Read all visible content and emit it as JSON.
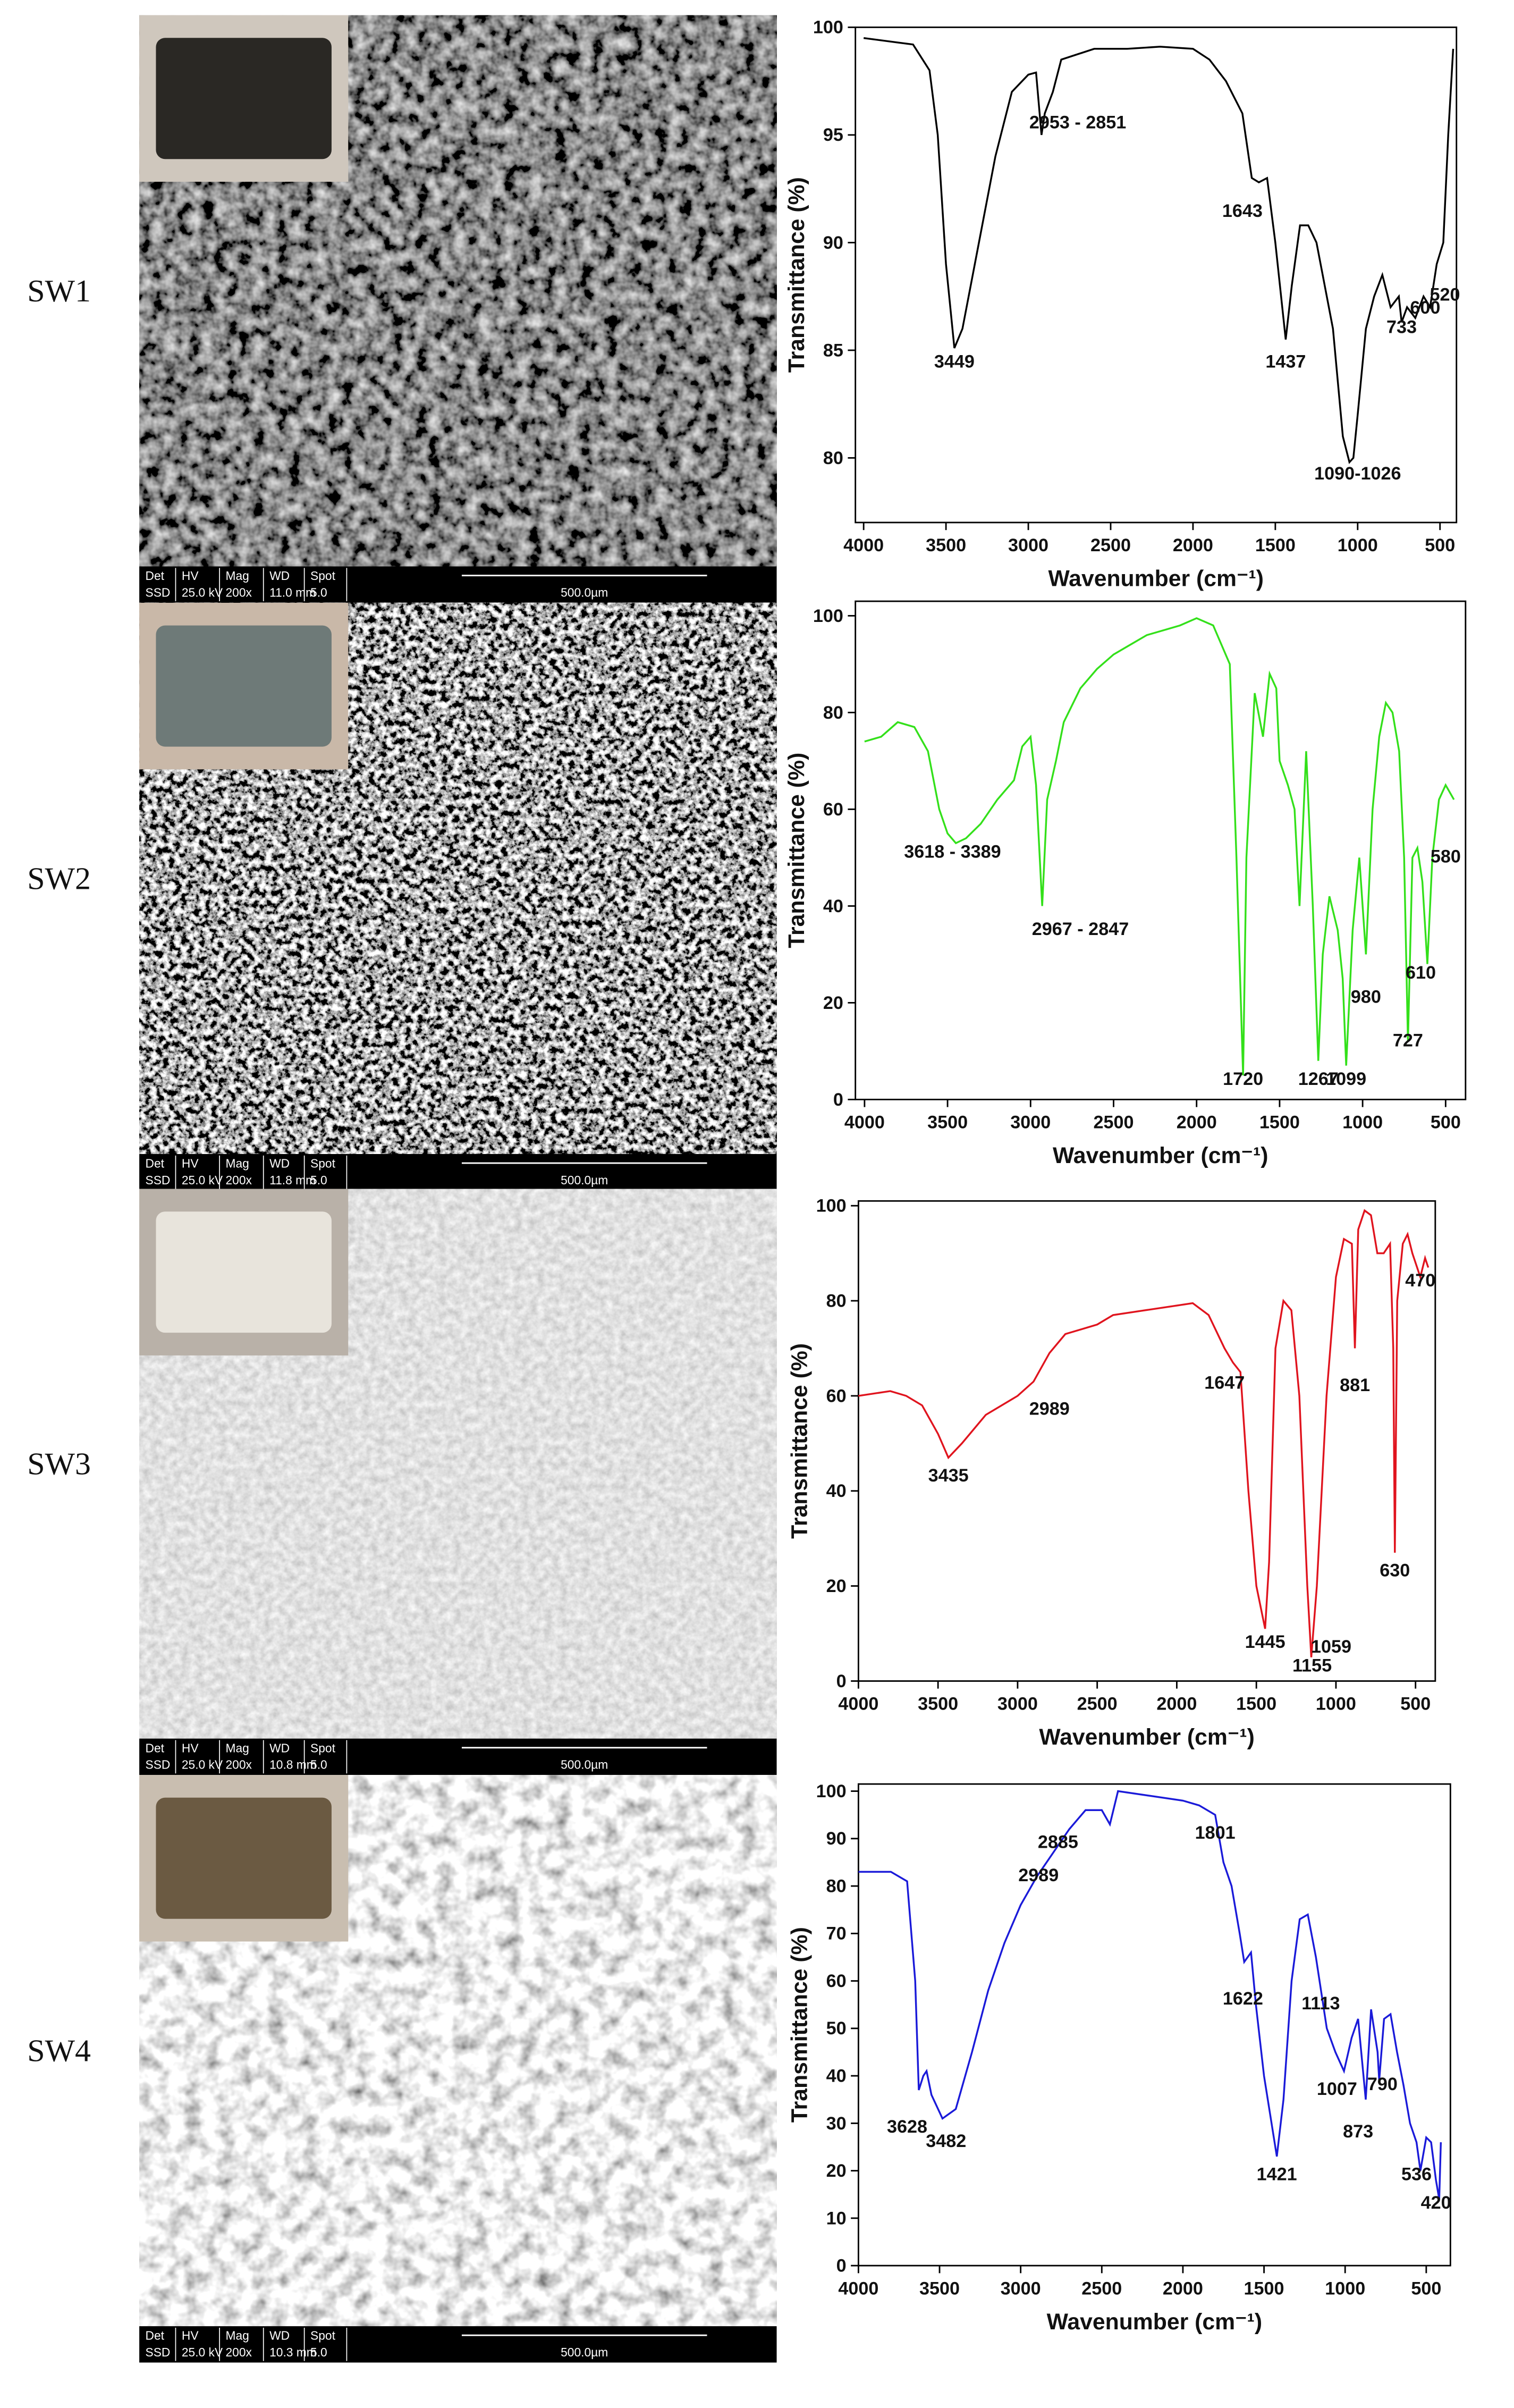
{
  "panels": [
    {
      "label": "SW1",
      "sem_header": [
        "Det",
        "HV",
        "Mag",
        "WD",
        "Spot"
      ],
      "sem_values": [
        "SSD",
        "25.0 kV",
        "200x",
        "11.0 mm",
        "5.0"
      ],
      "scale_bar": "500.0µm"
    },
    {
      "label": "SW2",
      "sem_header": [
        "Det",
        "HV",
        "Mag",
        "WD",
        "Spot"
      ],
      "sem_values": [
        "SSD",
        "25.0 kV",
        "200x",
        "11.8 mm",
        "5.0"
      ],
      "scale_bar": "500.0µm"
    },
    {
      "label": "SW3",
      "sem_header": [
        "Det",
        "HV",
        "Mag",
        "WD",
        "Spot"
      ],
      "sem_values": [
        "SSD",
        "25.0 kV",
        "200x",
        "10.8 mm",
        "5.0"
      ],
      "scale_bar": "500.0µm"
    },
    {
      "label": "SW4",
      "sem_header": [
        "Det",
        "HV",
        "Mag",
        "WD",
        "Spot"
      ],
      "sem_values": [
        "SSD",
        "25.0 kV",
        "200x",
        "10.3 mm",
        "5.0"
      ],
      "scale_bar": "500.0µm"
    }
  ],
  "chart_data": [
    {
      "type": "line",
      "xlabel": "Wavenumber (cm⁻¹)",
      "ylabel": "Transmittance (%)",
      "color": "#000000",
      "xlim": [
        4050,
        400
      ],
      "xticks": [
        4000,
        3500,
        3000,
        2500,
        2000,
        1500,
        1000,
        500
      ],
      "ylim": [
        77,
        100
      ],
      "yticks": [
        80,
        85,
        90,
        95,
        100
      ],
      "x": [
        4000,
        3800,
        3700,
        3600,
        3550,
        3500,
        3449,
        3400,
        3300,
        3200,
        3100,
        3000,
        2953,
        2920,
        2900,
        2851,
        2800,
        2600,
        2400,
        2200,
        2000,
        1900,
        1800,
        1700,
        1643,
        1600,
        1550,
        1500,
        1437,
        1400,
        1350,
        1300,
        1250,
        1200,
        1150,
        1090,
        1050,
        1026,
        1000,
        950,
        900,
        850,
        800,
        750,
        733,
        700,
        650,
        600,
        560,
        520,
        480,
        450,
        420
      ],
      "values": [
        99.5,
        99.3,
        99.2,
        98,
        95,
        89,
        85.1,
        86,
        90,
        94,
        97,
        97.8,
        97.9,
        95,
        96,
        97,
        98.5,
        99,
        99,
        99.1,
        99,
        98.5,
        97.5,
        96,
        93,
        92.8,
        93,
        90,
        85.5,
        88,
        90.8,
        90.8,
        90,
        88,
        86,
        81,
        79.8,
        80,
        82,
        86,
        87.5,
        88.5,
        87,
        87.5,
        86.3,
        87,
        86.5,
        87.5,
        87,
        89,
        90,
        95,
        99
      ],
      "annotations": [
        {
          "text": "3449",
          "x": 3449,
          "y": 84.2
        },
        {
          "text": "2953 - 2851",
          "x": 2700,
          "y": 95.3
        },
        {
          "text": "1643",
          "x": 1700,
          "y": 91.2
        },
        {
          "text": "1437",
          "x": 1437,
          "y": 84.2
        },
        {
          "text": "1090-1026",
          "x": 1000,
          "y": 79
        },
        {
          "text": "733",
          "x": 733,
          "y": 85.8
        },
        {
          "text": "600",
          "x": 590,
          "y": 86.7
        },
        {
          "text": "520",
          "x": 470,
          "y": 87.3
        }
      ]
    },
    {
      "type": "line",
      "xlabel": "Wavenumber (cm⁻¹)",
      "ylabel": "Transmittance (%)",
      "color": "#33e01a",
      "xlim": [
        4055,
        380
      ],
      "xticks": [
        4000,
        3500,
        3000,
        2500,
        2000,
        1500,
        1000,
        500
      ],
      "ylim": [
        0,
        103
      ],
      "yticks": [
        0,
        20,
        40,
        60,
        80,
        100
      ],
      "x": [
        4000,
        3900,
        3800,
        3700,
        3618,
        3550,
        3500,
        3450,
        3389,
        3300,
        3200,
        3100,
        3050,
        3000,
        2967,
        2930,
        2900,
        2847,
        2800,
        2700,
        2600,
        2500,
        2400,
        2300,
        2200,
        2100,
        2000,
        1900,
        1800,
        1760,
        1720,
        1700,
        1650,
        1600,
        1560,
        1520,
        1500,
        1450,
        1410,
        1380,
        1340,
        1300,
        1267,
        1240,
        1200,
        1150,
        1120,
        1099,
        1060,
        1020,
        980,
        940,
        900,
        860,
        820,
        780,
        750,
        727,
        700,
        670,
        640,
        610,
        580,
        540,
        500,
        450
      ],
      "values": [
        74,
        75,
        78,
        77,
        72,
        60,
        55,
        53,
        54,
        57,
        62,
        66,
        73,
        75,
        65,
        40,
        62,
        70,
        78,
        85,
        89,
        92,
        94,
        96,
        97,
        98,
        99.5,
        98,
        90,
        50,
        5,
        50,
        84,
        75,
        88,
        85,
        70,
        65,
        60,
        40,
        72,
        40,
        8,
        30,
        42,
        35,
        25,
        7,
        35,
        50,
        30,
        60,
        75,
        82,
        80,
        72,
        50,
        12,
        50,
        52,
        45,
        28,
        50,
        62,
        65,
        62
      ],
      "annotations": [
        {
          "text": "3618 - 3389",
          "x": 3470,
          "y": 50
        },
        {
          "text": "2967 - 2847",
          "x": 2700,
          "y": 34
        },
        {
          "text": "1720",
          "x": 1720,
          "y": 3
        },
        {
          "text": "1267",
          "x": 1267,
          "y": 3
        },
        {
          "text": "1099",
          "x": 1099,
          "y": 3
        },
        {
          "text": "980",
          "x": 980,
          "y": 20
        },
        {
          "text": "727",
          "x": 727,
          "y": 11
        },
        {
          "text": "610",
          "x": 650,
          "y": 25
        },
        {
          "text": "580",
          "x": 500,
          "y": 49
        }
      ]
    },
    {
      "type": "line",
      "xlabel": "Wavenumber (cm⁻¹)",
      "ylabel": "Transmittance (%)",
      "color": "#e0141e",
      "xlim": [
        4000,
        376
      ],
      "xticks": [
        4000,
        3500,
        3000,
        2500,
        2000,
        1500,
        1000,
        500
      ],
      "ylim": [
        0,
        101
      ],
      "yticks": [
        0,
        20,
        40,
        60,
        80,
        100
      ],
      "x": [
        4000,
        3800,
        3700,
        3600,
        3500,
        3435,
        3350,
        3200,
        3000,
        2900,
        2800,
        2700,
        2600,
        2500,
        2400,
        2200,
        2000,
        1900,
        1800,
        1700,
        1647,
        1600,
        1550,
        1500,
        1445,
        1420,
        1380,
        1330,
        1280,
        1230,
        1180,
        1155,
        1120,
        1059,
        1000,
        950,
        900,
        881,
        860,
        820,
        780,
        740,
        700,
        660,
        640,
        630,
        615,
        580,
        550,
        520,
        470,
        440,
        420
      ],
      "values": [
        60,
        61,
        60,
        58,
        52,
        47,
        50,
        56,
        60,
        63,
        69,
        73,
        74,
        75,
        77,
        78,
        79,
        79.5,
        77,
        70,
        67,
        65,
        40,
        20,
        11,
        25,
        70,
        80,
        78,
        60,
        20,
        5,
        20,
        60,
        85,
        93,
        92,
        70,
        95,
        99,
        98,
        90,
        90,
        92,
        70,
        27,
        80,
        92,
        94,
        90,
        85,
        89,
        87
      ],
      "annotations": [
        {
          "text": "3435",
          "x": 3435,
          "y": 42
        },
        {
          "text": "2989",
          "x": 2800,
          "y": 56
        },
        {
          "text": "1647",
          "x": 1700,
          "y": 61.5
        },
        {
          "text": "1445",
          "x": 1445,
          "y": 7
        },
        {
          "text": "1155",
          "x": 1150,
          "y": 2
        },
        {
          "text": "1059",
          "x": 1030,
          "y": 6
        },
        {
          "text": "881",
          "x": 881,
          "y": 61
        },
        {
          "text": "630",
          "x": 630,
          "y": 22
        },
        {
          "text": "470",
          "x": 470,
          "y": 83
        }
      ]
    },
    {
      "type": "line",
      "xlabel": "Wavenumber (cm⁻¹)",
      "ylabel": "Transmittance (%)",
      "color": "#1a1ad9",
      "xlim": [
        4000,
        351
      ],
      "xticks": [
        4000,
        3500,
        3000,
        2500,
        2000,
        1500,
        1000,
        500
      ],
      "ylim": [
        0,
        101.5
      ],
      "yticks": [
        0,
        10,
        20,
        30,
        40,
        50,
        60,
        70,
        80,
        90,
        100
      ],
      "x": [
        4000,
        3800,
        3700,
        3650,
        3628,
        3600,
        3580,
        3550,
        3482,
        3400,
        3300,
        3200,
        3100,
        3000,
        2900,
        2800,
        2700,
        2600,
        2500,
        2450,
        2400,
        2200,
        2000,
        1900,
        1801,
        1750,
        1700,
        1650,
        1622,
        1580,
        1550,
        1500,
        1421,
        1380,
        1330,
        1280,
        1230,
        1180,
        1113,
        1060,
        1007,
        960,
        920,
        873,
        840,
        800,
        790,
        760,
        720,
        680,
        640,
        600,
        560,
        536,
        500,
        470,
        440,
        420,
        410
      ],
      "values": [
        83,
        83,
        81,
        60,
        37,
        40,
        41,
        36,
        31,
        33,
        45,
        58,
        68,
        76,
        82,
        87,
        92,
        96,
        96,
        93,
        100,
        99,
        98,
        97,
        95,
        85,
        80,
        70,
        64,
        66,
        55,
        40,
        23,
        35,
        60,
        73,
        74,
        65,
        50,
        45,
        41,
        48,
        52,
        35,
        54,
        45,
        39,
        52,
        53,
        45,
        38,
        30,
        26,
        20,
        27,
        26,
        18,
        14,
        26
      ],
      "annotations": [
        {
          "text": "3628",
          "x": 3700,
          "y": 28
        },
        {
          "text": "3482",
          "x": 3460,
          "y": 25
        },
        {
          "text": "2885",
          "x": 2770,
          "y": 88
        },
        {
          "text": "2989",
          "x": 2890,
          "y": 81
        },
        {
          "text": "1801",
          "x": 1801,
          "y": 90
        },
        {
          "text": "1622",
          "x": 1630,
          "y": 55
        },
        {
          "text": "1421",
          "x": 1421,
          "y": 18
        },
        {
          "text": "1113",
          "x": 1150,
          "y": 54
        },
        {
          "text": "1007",
          "x": 1050,
          "y": 36
        },
        {
          "text": "873",
          "x": 920,
          "y": 27
        },
        {
          "text": "790",
          "x": 770,
          "y": 37
        },
        {
          "text": "536",
          "x": 560,
          "y": 18
        },
        {
          "text": "420",
          "x": 440,
          "y": 12
        }
      ]
    }
  ]
}
